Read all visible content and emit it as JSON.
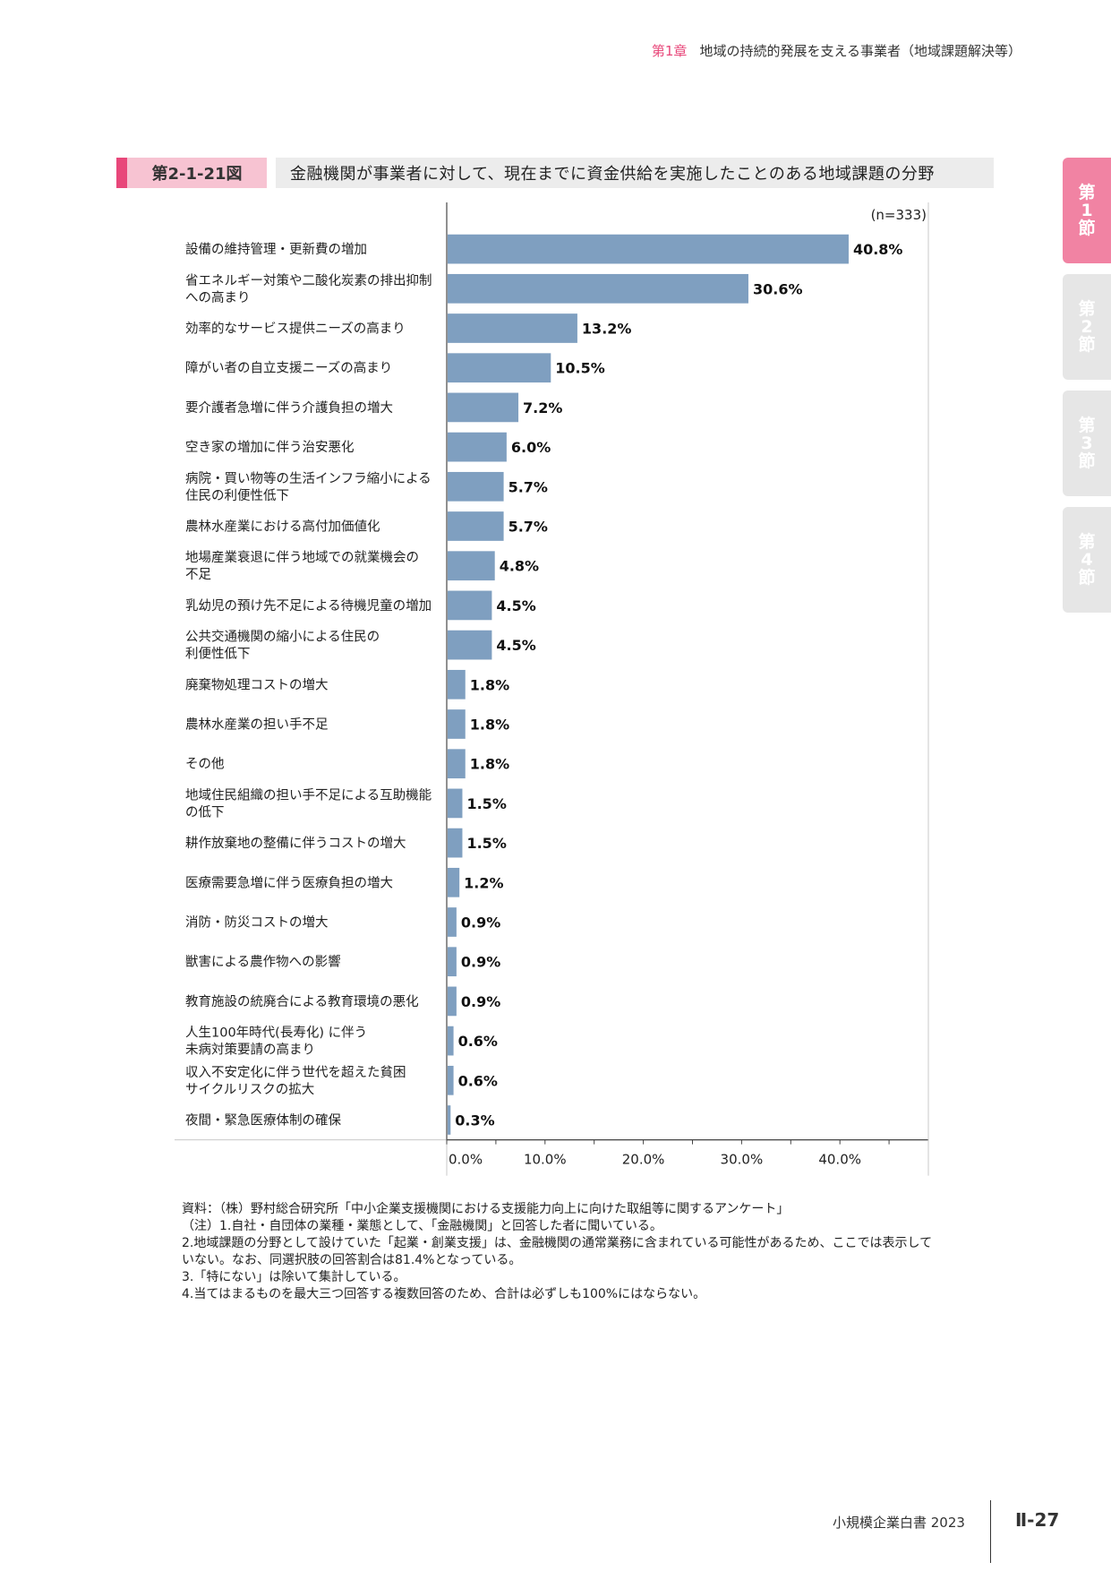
{
  "running_head": {
    "chapter": "第1章",
    "title": "地域の持続的発展を支える事業者（地域課題解決等）"
  },
  "side_tabs": [
    "第1節",
    "第2節",
    "第3節",
    "第4節"
  ],
  "figure": {
    "number": "第2-1-21図",
    "title": "金融機関が事業者に対して、現在までに資金供給を実施したことのある地域課題の分野"
  },
  "chart_data": {
    "type": "bar",
    "orientation": "horizontal",
    "sample_note": "(n=333)",
    "bar_color": "#7f9fc0",
    "categories": [
      [
        "設備の維持管理・更新費の増加"
      ],
      [
        "省エネルギー対策や二酸化炭素の排出抑制",
        "への高まり"
      ],
      [
        "効率的なサービス提供ニーズの高まり"
      ],
      [
        "障がい者の自立支援ニーズの高まり"
      ],
      [
        "要介護者急増に伴う介護負担の増大"
      ],
      [
        "空き家の増加に伴う治安悪化"
      ],
      [
        "病院・買い物等の生活インフラ縮小による",
        "住民の利便性低下"
      ],
      [
        "農林水産業における高付加価値化"
      ],
      [
        "地場産業衰退に伴う地域での就業機会の",
        "不足"
      ],
      [
        "乳幼児の預け先不足による待機児童の増加"
      ],
      [
        "公共交通機関の縮小による住民の",
        "利便性低下"
      ],
      [
        "廃棄物処理コストの増大"
      ],
      [
        "農林水産業の担い手不足"
      ],
      [
        "その他"
      ],
      [
        "地域住民組織の担い手不足による互助機能",
        "の低下"
      ],
      [
        "耕作放棄地の整備に伴うコストの増大"
      ],
      [
        "医療需要急増に伴う医療負担の増大"
      ],
      [
        "消防・防災コストの増大"
      ],
      [
        "獣害による農作物への影響"
      ],
      [
        "教育施設の統廃合による教育環境の悪化"
      ],
      [
        "人生100年時代(長寿化) に伴う",
        "未病対策要請の高まり"
      ],
      [
        "収入不安定化に伴う世代を超えた貧困",
        "サイクルリスクの拡大"
      ],
      [
        "夜間・緊急医療体制の確保"
      ]
    ],
    "values": [
      40.8,
      30.6,
      13.2,
      10.5,
      7.2,
      6.0,
      5.7,
      5.7,
      4.8,
      4.5,
      4.5,
      1.8,
      1.8,
      1.8,
      1.5,
      1.5,
      1.2,
      0.9,
      0.9,
      0.9,
      0.6,
      0.6,
      0.3
    ],
    "value_labels": [
      "40.8%",
      "30.6%",
      "13.2%",
      "10.5%",
      "7.2%",
      "6.0%",
      "5.7%",
      "5.7%",
      "4.8%",
      "4.5%",
      "4.5%",
      "1.8%",
      "1.8%",
      "1.8%",
      "1.5%",
      "1.5%",
      "1.2%",
      "0.9%",
      "0.9%",
      "0.9%",
      "0.6%",
      "0.6%",
      "0.3%"
    ],
    "x_ticks": [
      0,
      10,
      20,
      30,
      40
    ],
    "x_tick_labels": [
      "0.0%",
      "10.0%",
      "20.0%",
      "30.0%",
      "40.0%"
    ],
    "xlim": [
      0,
      49
    ],
    "xlabel": "",
    "ylabel": ""
  },
  "notes": [
    "資料：（株）野村総合研究所「中小企業支援機関における支援能力向上に向けた取組等に関するアンケート」",
    "（注）1.自社・自団体の業種・業態として、「金融機関」と回答した者に聞いている。",
    "2.地域課題の分野として設けていた「起業・創業支援」は、金融機関の通常業務に含まれている可能性があるため、ここでは表示していない。なお、同選択肢の回答割合は81.4%となっている。",
    "3.「特にない」は除いて集計している。",
    "4.当てはまるものを最大三つ回答する複数回答のため、合計は必ずしも100%にはならない。"
  ],
  "footer": {
    "publication": "小規模企業白書  2023",
    "page": "Ⅱ-27"
  }
}
